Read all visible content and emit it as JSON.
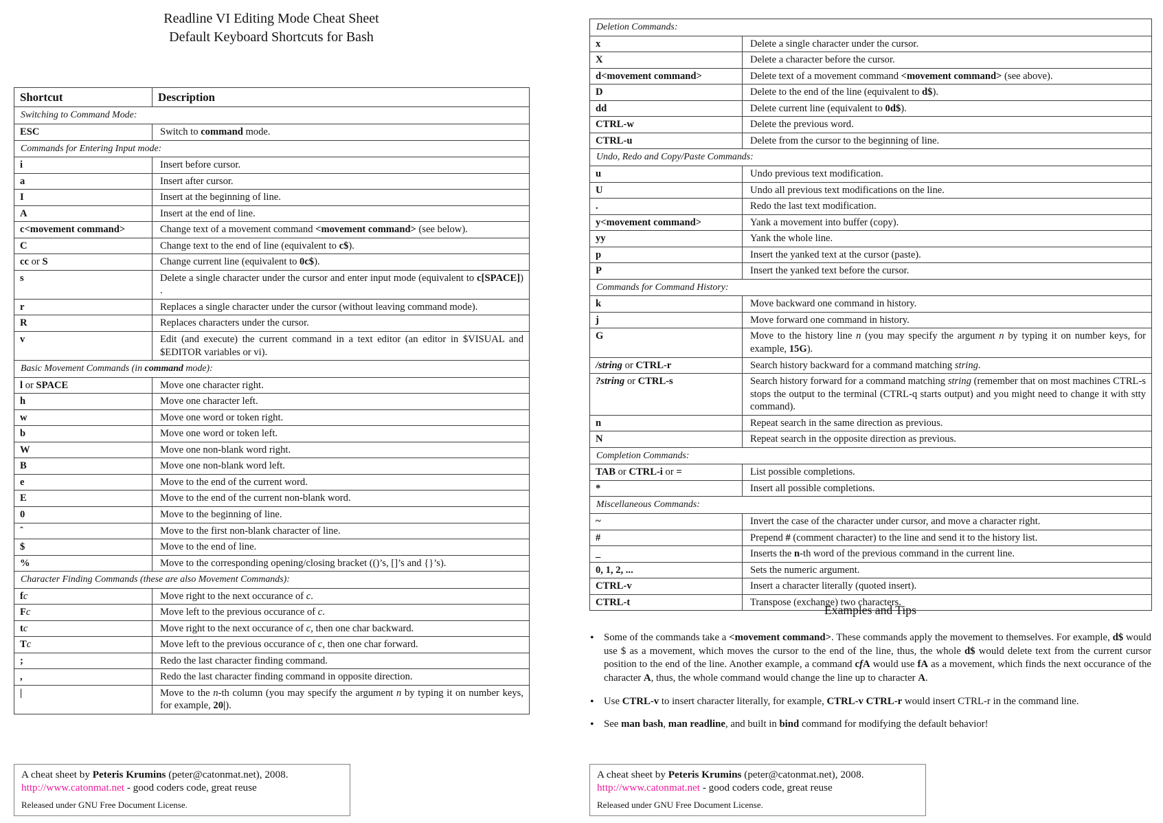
{
  "page": {
    "title_line1": "Readline VI Editing Mode Cheat Sheet",
    "title_line2": "Default Keyboard Shortcuts for Bash"
  },
  "colors": {
    "link_pink": "#ee1c9c",
    "table_border": "#3f3f3f"
  },
  "table_header": {
    "shortcut": "Shortcut",
    "description": "Description"
  },
  "left_table_rows": [
    {
      "section_html": "Switching to Command Mode:"
    },
    {
      "key_html": "<b>ESC</b>",
      "desc_html": "Switch to <b>command</b> mode."
    },
    {
      "section_html": "Commands for Entering Input mode:"
    },
    {
      "key_html": "<b>i</b>",
      "desc_html": "Insert before cursor."
    },
    {
      "key_html": "<b>a</b>",
      "desc_html": "Insert after cursor."
    },
    {
      "key_html": "<b>I</b>",
      "desc_html": "Insert at the beginning of line."
    },
    {
      "key_html": "<b>A</b>",
      "desc_html": "Insert at the end of line."
    },
    {
      "key_html": "<b>c&lt;movement command&gt;</b>",
      "desc_html": "Change text of a movement command <b>&lt;movement command&gt;</b> (see below)."
    },
    {
      "key_html": "<b>C</b>",
      "desc_html": "Change text to the end of line (equivalent to <b>c$</b>)."
    },
    {
      "key_html": "<b>cc</b> or <b>S</b>",
      "desc_html": "Change current line (equivalent to <b>0c$</b>)."
    },
    {
      "key_html": "<b>s</b>",
      "desc_html": "Delete a single character under the cursor and enter input mode (equivalent to <b>c[SPACE]</b>) ."
    },
    {
      "key_html": "<b>r</b>",
      "desc_html": "Replaces a single character under the cursor (without leaving command mode)."
    },
    {
      "key_html": "<b>R</b>",
      "desc_html": "Replaces characters under the cursor."
    },
    {
      "key_html": "<b>v</b>",
      "desc_html": "Edit (and execute) the current command in a text editor (an editor in $VISUAL and $EDITOR variables or vi)."
    },
    {
      "section_html": "Basic Movement Commands (in <b>command</b> mode):"
    },
    {
      "key_html": "<b>l</b> or <b>SPACE</b>",
      "desc_html": "Move one character right."
    },
    {
      "key_html": "<b>h</b>",
      "desc_html": "Move one character left."
    },
    {
      "key_html": "<b>w</b>",
      "desc_html": "Move one word or token right."
    },
    {
      "key_html": "<b>b</b>",
      "desc_html": "Move one word or token left."
    },
    {
      "key_html": "<b>W</b>",
      "desc_html": "Move one non-blank word right."
    },
    {
      "key_html": "<b>B</b>",
      "desc_html": "Move one non-blank word left."
    },
    {
      "key_html": "<b>e</b>",
      "desc_html": "Move to the end of the current word."
    },
    {
      "key_html": "<b>E</b>",
      "desc_html": "Move to the end of the current non-blank word."
    },
    {
      "key_html": "<b>0</b>",
      "desc_html": "Move to the beginning of line."
    },
    {
      "key_html": "<b>ˆ</b>",
      "desc_html": "Move to the first non-blank character of line."
    },
    {
      "key_html": "<b>$</b>",
      "desc_html": "Move to the end of line."
    },
    {
      "key_html": "<b>%</b>",
      "desc_html": "Move to the corresponding opening/closing bracket (()’s, []’s and {}’s)."
    },
    {
      "section_html": "Character Finding Commands (these are also Movement Commands):"
    },
    {
      "key_html": "<b>f</b><i>c</i>",
      "desc_html": "Move right to the next occurance of <i>c</i>."
    },
    {
      "key_html": "<b>F</b><i>c</i>",
      "desc_html": "Move left to the previous occurance of <i>c</i>."
    },
    {
      "key_html": "<b>t</b><i>c</i>",
      "desc_html": "Move right to the next occurance of <i>c</i>, then one char backward."
    },
    {
      "key_html": "<b>T</b><i>c</i>",
      "desc_html": "Move left to the previous occurance of <i>c</i>, then one char forward."
    },
    {
      "key_html": "<b>;</b>",
      "desc_html": "Redo the last character finding command."
    },
    {
      "key_html": "<b>,</b>",
      "desc_html": "Redo the last character finding command in opposite direction."
    },
    {
      "key_html": "<b>|</b>",
      "desc_html": "Move to the <i>n</i>-th column (you may specify the argument <i>n</i> by typing it on number keys, for example, <b>20|</b>)."
    }
  ],
  "right_table_rows": [
    {
      "section_html": "Deletion Commands:"
    },
    {
      "key_html": "<b>x</b>",
      "desc_html": "Delete a single character under the cursor."
    },
    {
      "key_html": "<b>X</b>",
      "desc_html": "Delete a character before the cursor."
    },
    {
      "key_html": "<b>d&lt;movement command&gt;</b>",
      "desc_html": "Delete text of a movement command <b>&lt;movement command&gt;</b> (see above)."
    },
    {
      "key_html": "<b>D</b>",
      "desc_html": "Delete to the end of the line (equivalent to <b>d$</b>)."
    },
    {
      "key_html": "<b>dd</b>",
      "desc_html": "Delete current line (equivalent to <b>0d$</b>)."
    },
    {
      "key_html": "<b>CTRL-w</b>",
      "desc_html": "Delete the previous word."
    },
    {
      "key_html": "<b>CTRL-u</b>",
      "desc_html": "Delete from the cursor to the beginning of line."
    },
    {
      "section_html": "Undo, Redo and Copy/Paste Commands:"
    },
    {
      "key_html": "<b>u</b>",
      "desc_html": "Undo previous text modification."
    },
    {
      "key_html": "<b>U</b>",
      "desc_html": "Undo all previous text modifications on the line."
    },
    {
      "key_html": "<b>.</b>",
      "desc_html": "Redo the last text modification."
    },
    {
      "key_html": "<b>y&lt;movement command&gt;</b>",
      "desc_html": "Yank a movement into buffer (copy)."
    },
    {
      "key_html": "<b>yy</b>",
      "desc_html": "Yank the whole line."
    },
    {
      "key_html": "<b>p</b>",
      "desc_html": "Insert the yanked text at the cursor (paste)."
    },
    {
      "key_html": "<b>P</b>",
      "desc_html": "Insert the yanked text before the cursor."
    },
    {
      "section_html": "Commands for Command History:"
    },
    {
      "key_html": "<b>k</b>",
      "desc_html": "Move backward one command in history."
    },
    {
      "key_html": "<b>j</b>",
      "desc_html": "Move forward one command in history."
    },
    {
      "key_html": "<b>G</b>",
      "desc_html": "Move to the history line <i>n</i> (you may specify the argument <i>n</i> by typing it on number keys, for example, <b>15G</b>)."
    },
    {
      "key_html": "<b><i>/string</i></b> or <b>CTRL-r</b>",
      "desc_html": "Search history backward for a command matching <i>string</i>."
    },
    {
      "key_html": "<b><i>?string</i></b> or <b>CTRL-s</b>",
      "desc_html": "Search history forward for a command matching <i>string</i> (remember that on most machines CTRL-s stops the output to the terminal (CTRL-q starts output) and you might need to change it with stty command)."
    },
    {
      "key_html": "<b>n</b>",
      "desc_html": "Repeat search in the same direction as previous."
    },
    {
      "key_html": "<b>N</b>",
      "desc_html": "Repeat search in the opposite direction as previous."
    },
    {
      "section_html": "Completion Commands:"
    },
    {
      "key_html": "<b>TAB</b> or <b>CTRL-i</b> or <b>=</b>",
      "desc_html": "List possible completions."
    },
    {
      "key_html": "<b>*</b>",
      "desc_html": "Insert all possible completions."
    },
    {
      "section_html": "Miscellaneous Commands:"
    },
    {
      "key_html": "<b>~</b>",
      "desc_html": "Invert the case of the character under cursor, and move a character right."
    },
    {
      "key_html": "<b>#</b>",
      "desc_html": "Prepend <b>#</b> (comment character) to the line and send it to the history list."
    },
    {
      "key_html": "<b>_</b>",
      "desc_html": "Inserts the <b>n</b>-th word of the previous command in the current line."
    },
    {
      "key_html": "<b>0, 1, 2, ...</b>",
      "desc_html": "Sets the numeric argument."
    },
    {
      "key_html": "<b>CTRL-v</b>",
      "desc_html": "Insert a character literally (quoted insert)."
    },
    {
      "key_html": "<b>CTRL-t</b>",
      "desc_html": "Transpose (exchange) two characters."
    }
  ],
  "examples": {
    "heading": "Examples and Tips",
    "bullets_html": [
      "Some of the commands take a <b>&lt;movement command&gt;</b>.  These commands apply the movement to themselves. For example, <b>d$</b> would use $ as a movement, which moves the cursor to the end of the line, thus, the whole <b>d$</b> would delete text from the current cursor position to the end of the line. Another example, a command <b>c<i>f</i>A</b> would use <b>fA</b> as a movement, which finds the next occurance of the character <b>A</b>, thus, the whole command would change the line up to character <b>A</b>.",
      "Use <b>CTRL-v</b> to insert character literally, for example, <b>CTRL-v CTRL-r</b> would insert CTRL-r in the command line.",
      "See <b>man bash</b>, <b>man readline</b>, and built in <b>bind</b> command for modifying the default behavior!"
    ]
  },
  "footer": {
    "line1_html": "A cheat sheet by <b>Peteris Krumins</b> (peter@catonmat.net), 2008.",
    "link_text": "http://www.catonmat.net",
    "line2_rest": " - good coders code, great reuse",
    "line3": "Released under GNU Free Document License."
  }
}
